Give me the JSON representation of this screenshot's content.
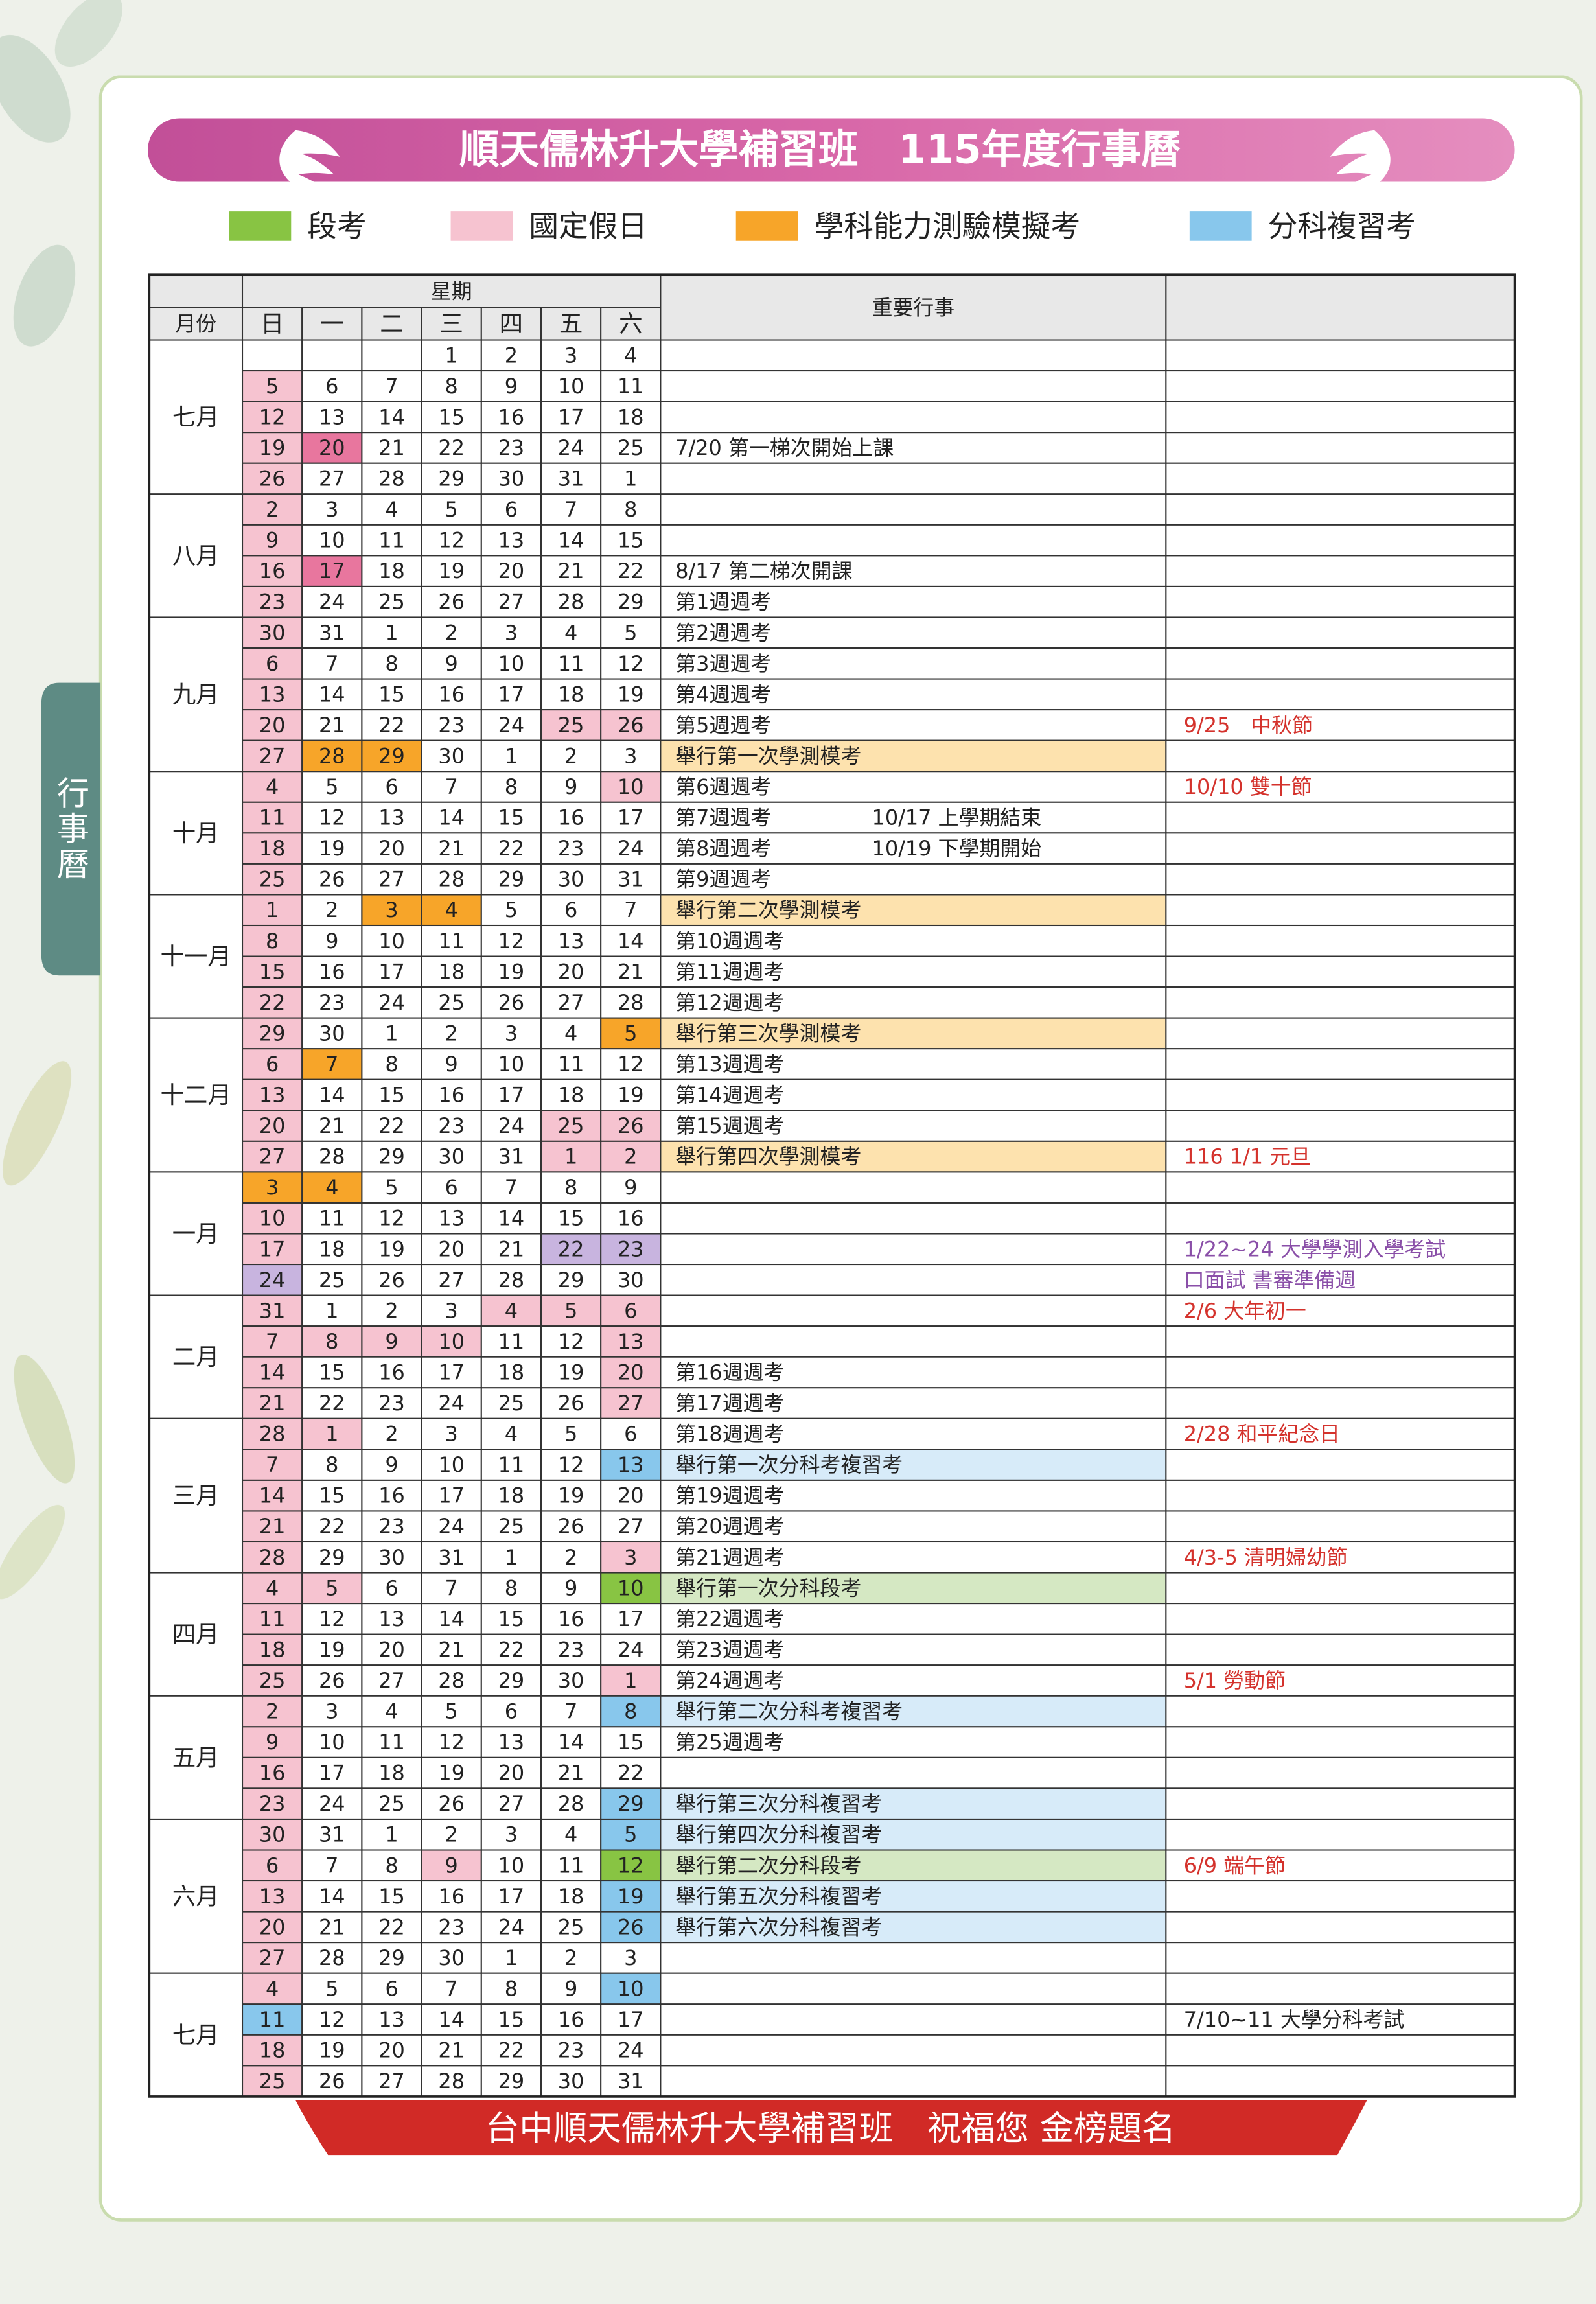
{
  "header": {
    "title": "順天儒林升大學補習班　115年度行事曆",
    "side_tab": "行事曆"
  },
  "legend": [
    {
      "label": "段考",
      "color": "#88c443"
    },
    {
      "label": "國定假日",
      "color": "#f6c3d0"
    },
    {
      "label": "學科能力測驗模擬考",
      "color": "#f7a529"
    },
    {
      "label": "分科複習考",
      "color": "#88c7ec"
    }
  ],
  "table": {
    "weekday_header": "星期",
    "month_header": "月份",
    "event_header": "重要行事",
    "weekdays": [
      "日",
      "一",
      "二",
      "三",
      "四",
      "五",
      "六"
    ],
    "sunday_color": "#f6c3d0",
    "months": [
      {
        "name": "七月",
        "weeks": [
          {
            "days": [
              null,
              null,
              null,
              1,
              2,
              3,
              4
            ]
          },
          {
            "days": [
              5,
              6,
              7,
              8,
              9,
              10,
              11
            ]
          },
          {
            "days": [
              12,
              13,
              14,
              15,
              16,
              17,
              18
            ]
          },
          {
            "days": [
              19,
              {
                "value": 20,
                "color": "#e8769e"
              },
              21,
              22,
              23,
              24,
              25
            ],
            "events": [
              "7/20 第一梯次開始上課"
            ]
          },
          {
            "days": [
              26,
              27,
              28,
              29,
              30,
              31,
              1
            ]
          }
        ]
      },
      {
        "name": "八月",
        "weeks": [
          {
            "days": [
              2,
              3,
              4,
              5,
              6,
              7,
              8
            ]
          },
          {
            "days": [
              9,
              10,
              11,
              12,
              13,
              14,
              15
            ]
          },
          {
            "days": [
              16,
              {
                "value": 17,
                "color": "#e8769e"
              },
              18,
              19,
              20,
              21,
              22
            ],
            "events": [
              "8/17 第二梯次開課"
            ]
          },
          {
            "days": [
              23,
              24,
              25,
              26,
              27,
              28,
              29
            ],
            "events": [
              "第1週週考"
            ]
          }
        ]
      },
      {
        "name": "九月",
        "weeks": [
          {
            "days": [
              30,
              31,
              1,
              2,
              3,
              4,
              5
            ],
            "events": [
              "第2週週考"
            ]
          },
          {
            "days": [
              6,
              7,
              8,
              9,
              10,
              11,
              12
            ],
            "events": [
              "第3週週考"
            ]
          },
          {
            "days": [
              13,
              14,
              15,
              16,
              17,
              18,
              19
            ],
            "events": [
              "第4週週考"
            ]
          },
          {
            "days": [
              20,
              21,
              22,
              23,
              24,
              {
                "value": 25,
                "color": "#f6c3d0"
              },
              {
                "value": 26,
                "color": "#f6c3d0"
              }
            ],
            "events": [
              "第5週週考"
            ],
            "note": {
              "text": "9/25　中秋節",
              "color": "#d4322c"
            }
          },
          {
            "days": [
              27,
              {
                "value": 28,
                "color": "#f7a529"
              },
              {
                "value": 29,
                "color": "#f7a529"
              },
              30,
              1,
              2,
              3
            ],
            "events": [
              "舉行第一次學測模考"
            ],
            "event_color": "#fde2ae"
          }
        ]
      },
      {
        "name": "十月",
        "weeks": [
          {
            "days": [
              4,
              5,
              6,
              7,
              8,
              9,
              {
                "value": 10,
                "color": "#f6c3d0"
              }
            ],
            "events": [
              "第6週週考"
            ],
            "note": {
              "text": "10/10 雙十節",
              "color": "#d4322c"
            }
          },
          {
            "days": [
              11,
              12,
              13,
              14,
              15,
              16,
              17
            ],
            "events": [
              "第7週週考",
              "10/17 上學期結束"
            ]
          },
          {
            "days": [
              18,
              19,
              20,
              21,
              22,
              23,
              24
            ],
            "events": [
              "第8週週考",
              "10/19 下學期開始"
            ]
          },
          {
            "days": [
              25,
              26,
              27,
              28,
              29,
              30,
              31
            ],
            "events": [
              "第9週週考"
            ]
          }
        ]
      },
      {
        "name": "十一月",
        "weeks": [
          {
            "days": [
              1,
              2,
              {
                "value": 3,
                "color": "#f7a529"
              },
              {
                "value": 4,
                "color": "#f7a529"
              },
              5,
              6,
              7
            ],
            "events": [
              "舉行第二次學測模考"
            ],
            "event_color": "#fde2ae"
          },
          {
            "days": [
              8,
              9,
              10,
              11,
              12,
              13,
              14
            ],
            "events": [
              "第10週週考"
            ]
          },
          {
            "days": [
              15,
              16,
              17,
              18,
              19,
              20,
              21
            ],
            "events": [
              "第11週週考"
            ]
          },
          {
            "days": [
              22,
              23,
              24,
              25,
              26,
              27,
              28
            ],
            "events": [
              "第12週週考"
            ]
          }
        ]
      },
      {
        "name": "十二月",
        "weeks": [
          {
            "days": [
              29,
              30,
              1,
              2,
              3,
              4,
              {
                "value": 5,
                "color": "#f7a529"
              }
            ],
            "events": [
              "舉行第三次學測模考"
            ],
            "event_color": "#fde2ae"
          },
          {
            "days": [
              6,
              {
                "value": 7,
                "color": "#f7a529"
              },
              8,
              9,
              10,
              11,
              12
            ],
            "events": [
              "第13週週考"
            ]
          },
          {
            "days": [
              13,
              14,
              15,
              16,
              17,
              18,
              19
            ],
            "events": [
              "第14週週考"
            ]
          },
          {
            "days": [
              20,
              21,
              22,
              23,
              24,
              {
                "value": 25,
                "color": "#f6c3d0"
              },
              {
                "value": 26,
                "color": "#f6c3d0"
              }
            ],
            "events": [
              "第15週週考"
            ]
          },
          {
            "days": [
              27,
              28,
              29,
              30,
              31,
              {
                "value": 1,
                "color": "#f6c3d0"
              },
              {
                "value": 2,
                "color": "#f6c3d0"
              }
            ],
            "events": [
              "舉行第四次學測模考"
            ],
            "event_color": "#fde2ae",
            "note": {
              "text": "116 1/1 元旦",
              "color": "#d4322c"
            }
          }
        ]
      },
      {
        "name": "一月",
        "weeks": [
          {
            "days": [
              {
                "value": 3,
                "color": "#f7a529"
              },
              {
                "value": 4,
                "color": "#f7a529"
              },
              5,
              6,
              7,
              8,
              9
            ]
          },
          {
            "days": [
              10,
              11,
              12,
              13,
              14,
              15,
              16
            ]
          },
          {
            "days": [
              17,
              18,
              19,
              20,
              21,
              {
                "value": 22,
                "color": "#c8b4df"
              },
              {
                "value": 23,
                "color": "#c8b4df"
              }
            ],
            "note": {
              "text": "1/22~24 大學學測入學考試",
              "color": "#8a4fa8"
            }
          },
          {
            "days": [
              {
                "value": 24,
                "color": "#c8b4df"
              },
              25,
              26,
              27,
              28,
              29,
              30
            ],
            "note": {
              "text": "口面試 書審準備週",
              "color": "#8a4fa8"
            }
          }
        ]
      },
      {
        "name": "二月",
        "weeks": [
          {
            "days": [
              31,
              1,
              2,
              3,
              {
                "value": 4,
                "color": "#f6c3d0"
              },
              {
                "value": 5,
                "color": "#f6c3d0"
              },
              {
                "value": 6,
                "color": "#f6c3d0"
              }
            ],
            "note": {
              "text": "2/6 大年初一",
              "color": "#d4322c"
            }
          },
          {
            "days": [
              7,
              {
                "value": 8,
                "color": "#f6c3d0"
              },
              {
                "value": 9,
                "color": "#f6c3d0"
              },
              {
                "value": 10,
                "color": "#f6c3d0"
              },
              11,
              12,
              {
                "value": 13,
                "color": "#f6c3d0"
              }
            ]
          },
          {
            "days": [
              14,
              15,
              16,
              17,
              18,
              19,
              {
                "value": 20,
                "color": "#f6c3d0"
              }
            ],
            "events": [
              "第16週週考"
            ]
          },
          {
            "days": [
              21,
              22,
              23,
              24,
              25,
              26,
              {
                "value": 27,
                "color": "#f6c3d0"
              }
            ],
            "events": [
              "第17週週考"
            ]
          }
        ]
      },
      {
        "name": "三月",
        "weeks": [
          {
            "days": [
              28,
              {
                "value": 1,
                "color": "#f6c3d0"
              },
              2,
              3,
              4,
              5,
              6
            ],
            "events": [
              "第18週週考"
            ],
            "note": {
              "text": "2/28 和平紀念日",
              "color": "#d4322c"
            }
          },
          {
            "days": [
              7,
              8,
              9,
              10,
              11,
              12,
              {
                "value": 13,
                "color": "#88c7ec"
              }
            ],
            "events": [
              "舉行第一次分科考複習考"
            ],
            "event_color": "#d7ebf9"
          },
          {
            "days": [
              14,
              15,
              16,
              17,
              18,
              19,
              20
            ],
            "events": [
              "第19週週考"
            ]
          },
          {
            "days": [
              21,
              22,
              23,
              24,
              25,
              26,
              27
            ],
            "events": [
              "第20週週考"
            ]
          },
          {
            "days": [
              28,
              29,
              30,
              31,
              1,
              2,
              {
                "value": 3,
                "color": "#f6c3d0"
              }
            ],
            "events": [
              "第21週週考"
            ],
            "note": {
              "text": "4/3-5 清明婦幼節",
              "color": "#d4322c"
            }
          }
        ]
      },
      {
        "name": "四月",
        "weeks": [
          {
            "days": [
              4,
              {
                "value": 5,
                "color": "#f6c3d0"
              },
              6,
              7,
              8,
              9,
              {
                "value": 10,
                "color": "#88c443"
              }
            ],
            "events": [
              "舉行第一次分科段考"
            ],
            "event_color": "#d5e8c3"
          },
          {
            "days": [
              11,
              12,
              13,
              14,
              15,
              16,
              17
            ],
            "events": [
              "第22週週考"
            ]
          },
          {
            "days": [
              18,
              19,
              20,
              21,
              22,
              23,
              24
            ],
            "events": [
              "第23週週考"
            ]
          },
          {
            "days": [
              25,
              26,
              27,
              28,
              29,
              30,
              {
                "value": 1,
                "color": "#f6c3d0"
              }
            ],
            "events": [
              "第24週週考"
            ],
            "note": {
              "text": "5/1 勞動節",
              "color": "#d4322c"
            }
          }
        ]
      },
      {
        "name": "五月",
        "weeks": [
          {
            "days": [
              2,
              3,
              4,
              5,
              6,
              7,
              {
                "value": 8,
                "color": "#88c7ec"
              }
            ],
            "events": [
              "舉行第二次分科考複習考"
            ],
            "event_color": "#d7ebf9"
          },
          {
            "days": [
              9,
              10,
              11,
              12,
              13,
              14,
              15
            ],
            "events": [
              "第25週週考"
            ]
          },
          {
            "days": [
              16,
              17,
              18,
              19,
              20,
              21,
              22
            ]
          },
          {
            "days": [
              23,
              24,
              25,
              26,
              27,
              28,
              {
                "value": 29,
                "color": "#88c7ec"
              }
            ],
            "events": [
              "舉行第三次分科複習考"
            ],
            "event_color": "#d7ebf9"
          }
        ]
      },
      {
        "name": "六月",
        "weeks": [
          {
            "days": [
              30,
              31,
              1,
              2,
              3,
              4,
              {
                "value": 5,
                "color": "#88c7ec"
              }
            ],
            "events": [
              "舉行第四次分科複習考"
            ],
            "event_color": "#d7ebf9"
          },
          {
            "days": [
              6,
              7,
              8,
              {
                "value": 9,
                "color": "#f6c3d0"
              },
              10,
              11,
              {
                "value": 12,
                "color": "#88c443"
              }
            ],
            "events": [
              "舉行第二次分科段考"
            ],
            "event_color": "#d5e8c3",
            "note": {
              "text": "6/9 端午節",
              "color": "#d4322c"
            }
          },
          {
            "days": [
              13,
              14,
              15,
              16,
              17,
              18,
              {
                "value": 19,
                "color": "#88c7ec"
              }
            ],
            "events": [
              "舉行第五次分科複習考"
            ],
            "event_color": "#d7ebf9"
          },
          {
            "days": [
              20,
              21,
              22,
              23,
              24,
              25,
              {
                "value": 26,
                "color": "#88c7ec"
              }
            ],
            "events": [
              "舉行第六次分科複習考"
            ],
            "event_color": "#d7ebf9"
          },
          {
            "days": [
              27,
              28,
              29,
              30,
              1,
              2,
              3
            ]
          }
        ]
      },
      {
        "name": "七月",
        "weeks": [
          {
            "days": [
              4,
              5,
              6,
              7,
              8,
              9,
              {
                "value": 10,
                "color": "#88c7ec"
              }
            ]
          },
          {
            "days": [
              {
                "value": 11,
                "color": "#88c7ec"
              },
              12,
              13,
              14,
              15,
              16,
              17
            ],
            "note": {
              "text": "7/10~11 大學分科考試",
              "color": "#222222"
            }
          },
          {
            "days": [
              18,
              19,
              20,
              21,
              22,
              23,
              24
            ]
          },
          {
            "days": [
              25,
              26,
              27,
              28,
              29,
              30,
              31
            ]
          }
        ]
      }
    ]
  },
  "footer": {
    "text": "台中順天儒林升大學補習班　祝福您 金榜題名"
  }
}
